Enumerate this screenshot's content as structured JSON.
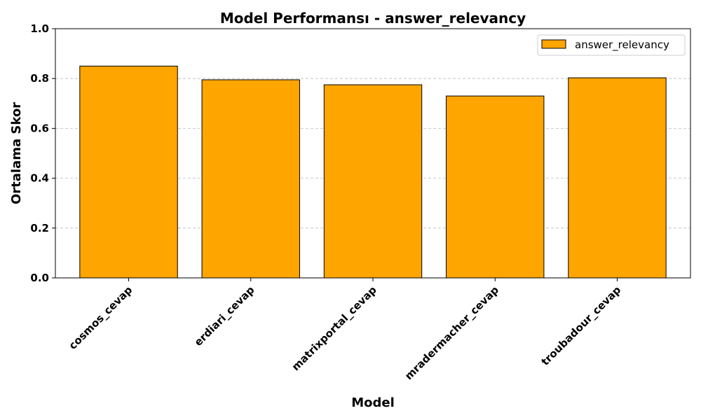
{
  "colors": {
    "bar_fill": "#FFA500",
    "bar_edge": "#000000",
    "grid": "#BBBBBB",
    "axis": "#000000",
    "background": "#FFFFFF"
  },
  "chart_data": {
    "type": "bar",
    "title": "Model Performansı - answer_relevancy",
    "xlabel": "Model",
    "ylabel": "Ortalama Skor",
    "categories": [
      "cosmos_cevap",
      "erdiari_cevap",
      "matrixportal_cevap",
      "mradermacher_cevap",
      "troubadour_cevap"
    ],
    "series": [
      {
        "name": "answer_relevancy",
        "values": [
          0.85,
          0.795,
          0.775,
          0.73,
          0.803
        ]
      }
    ],
    "ylim": [
      0,
      1.0
    ],
    "yticks": [
      "0.0",
      "0.2",
      "0.4",
      "0.6",
      "0.8",
      "1.0"
    ],
    "grid": "y-dashed",
    "legend_position": "top-right",
    "x_tick_rotation": "45 degrees"
  }
}
